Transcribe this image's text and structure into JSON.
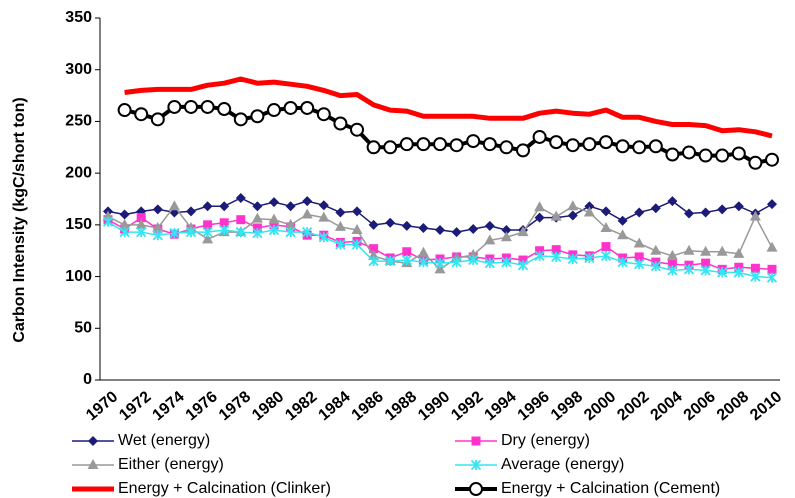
{
  "chart_data": {
    "type": "line",
    "y_label": "Carbon Intensity (kgC/short ton)",
    "categories": [
      "1970",
      null,
      "1972",
      null,
      "1974",
      null,
      "1976",
      null,
      "1978",
      null,
      "1980",
      null,
      "1982",
      null,
      "1984",
      null,
      "1986",
      null,
      "1988",
      null,
      "1990",
      null,
      "1992",
      null,
      "1994",
      null,
      "1996",
      null,
      "1998",
      null,
      "2000",
      null,
      "2002",
      null,
      "2004",
      null,
      "2006",
      null,
      "2008",
      null,
      "2010"
    ],
    "ylim": [
      0,
      350
    ],
    "yticks": [
      0,
      50,
      100,
      150,
      200,
      250,
      300,
      350
    ],
    "grid": false,
    "series": [
      {
        "name": "Wet (energy)",
        "color": "#1c1c78",
        "marker": "diamond",
        "width": 1.5,
        "values": [
          163,
          160,
          163,
          165,
          162,
          163,
          168,
          168,
          176,
          168,
          172,
          168,
          173,
          169,
          162,
          163,
          150,
          152,
          149,
          147,
          145,
          143,
          146,
          149,
          145,
          145,
          157,
          157,
          159,
          168,
          163,
          154,
          162,
          166,
          173,
          161,
          162,
          165,
          168,
          161,
          170
        ]
      },
      {
        "name": "Dry (energy)",
        "color": "#ff33cc",
        "marker": "square",
        "width": 1.5,
        "values": [
          155,
          146,
          157,
          146,
          141,
          146,
          150,
          152,
          155,
          147,
          150,
          148,
          140,
          140,
          133,
          134,
          127,
          118,
          124,
          116,
          117,
          119,
          119,
          117,
          118,
          116,
          125,
          126,
          121,
          120,
          129,
          118,
          119,
          114,
          112,
          111,
          113,
          107,
          109,
          108,
          107
        ]
      },
      {
        "name": "Either (energy)",
        "color": "#999999",
        "marker": "triangle",
        "width": 1.5,
        "values": [
          158,
          150,
          150,
          147,
          168,
          147,
          136,
          143,
          143,
          156,
          155,
          150,
          160,
          157,
          148,
          145,
          120,
          115,
          113,
          123,
          107,
          118,
          121,
          135,
          138,
          143,
          167,
          158,
          168,
          162,
          147,
          140,
          132,
          125,
          120,
          125,
          124,
          124,
          122,
          158,
          128
        ]
      },
      {
        "name": "Average (energy)",
        "color": "#33e6f2",
        "marker": "x",
        "width": 1.5,
        "values": [
          153,
          143,
          143,
          140,
          142,
          143,
          143,
          145,
          143,
          142,
          145,
          143,
          143,
          138,
          131,
          131,
          115,
          115,
          116,
          114,
          113,
          114,
          116,
          113,
          114,
          111,
          120,
          119,
          117,
          118,
          120,
          114,
          112,
          110,
          106,
          107,
          106,
          104,
          104,
          100,
          99
        ]
      },
      {
        "name": "Energy + Calcination (Clinker)",
        "color": "#ff0000",
        "marker": "none",
        "width": 5,
        "values": [
          null,
          278,
          280,
          281,
          281,
          281,
          285,
          287,
          291,
          287,
          288,
          286,
          284,
          280,
          275,
          276,
          266,
          261,
          260,
          255,
          255,
          255,
          255,
          253,
          253,
          253,
          258,
          260,
          258,
          257,
          261,
          254,
          254,
          250,
          247,
          247,
          246,
          241,
          242,
          240,
          236
        ]
      },
      {
        "name": "Energy + Calcination (Cement)",
        "color": "#000000",
        "marker": "circle",
        "width": 4,
        "values": [
          null,
          261,
          257,
          252,
          264,
          264,
          264,
          262,
          252,
          255,
          261,
          263,
          263,
          257,
          248,
          242,
          225,
          225,
          228,
          228,
          228,
          227,
          231,
          228,
          225,
          222,
          235,
          230,
          227,
          228,
          230,
          226,
          225,
          226,
          218,
          220,
          217,
          217,
          219,
          210,
          213
        ]
      }
    ]
  }
}
